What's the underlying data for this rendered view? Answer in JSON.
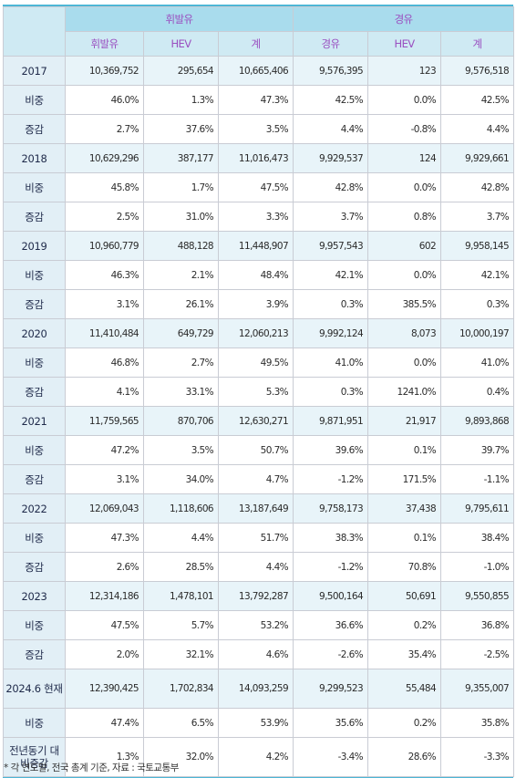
{
  "header": {
    "groups": [
      "휘발유",
      "경유"
    ],
    "columns": [
      "휘발유",
      "HEV",
      "계",
      "경유",
      "HEV",
      "계"
    ]
  },
  "rows": [
    {
      "label": "2017",
      "type": "year",
      "values": [
        "10,369,752",
        "295,654",
        "10,665,406",
        "9,576,395",
        "123",
        "9,576,518"
      ]
    },
    {
      "label": "비중",
      "type": "share",
      "values": [
        "46.0%",
        "1.3%",
        "47.3%",
        "42.5%",
        "0.0%",
        "42.5%"
      ]
    },
    {
      "label": "증감",
      "type": "change",
      "values": [
        "2.7%",
        "37.6%",
        "3.5%",
        "4.4%",
        "-0.8%",
        "4.4%"
      ]
    },
    {
      "label": "2018",
      "type": "year",
      "values": [
        "10,629,296",
        "387,177",
        "11,016,473",
        "9,929,537",
        "124",
        "9,929,661"
      ]
    },
    {
      "label": "비중",
      "type": "share",
      "values": [
        "45.8%",
        "1.7%",
        "47.5%",
        "42.8%",
        "0.0%",
        "42.8%"
      ]
    },
    {
      "label": "증감",
      "type": "change",
      "values": [
        "2.5%",
        "31.0%",
        "3.3%",
        "3.7%",
        "0.8%",
        "3.7%"
      ]
    },
    {
      "label": "2019",
      "type": "year",
      "values": [
        "10,960,779",
        "488,128",
        "11,448,907",
        "9,957,543",
        "602",
        "9,958,145"
      ]
    },
    {
      "label": "비중",
      "type": "share",
      "values": [
        "46.3%",
        "2.1%",
        "48.4%",
        "42.1%",
        "0.0%",
        "42.1%"
      ]
    },
    {
      "label": "증감",
      "type": "change",
      "values": [
        "3.1%",
        "26.1%",
        "3.9%",
        "0.3%",
        "385.5%",
        "0.3%"
      ]
    },
    {
      "label": "2020",
      "type": "year",
      "values": [
        "11,410,484",
        "649,729",
        "12,060,213",
        "9,992,124",
        "8,073",
        "10,000,197"
      ]
    },
    {
      "label": "비중",
      "type": "share",
      "values": [
        "46.8%",
        "2.7%",
        "49.5%",
        "41.0%",
        "0.0%",
        "41.0%"
      ]
    },
    {
      "label": "증감",
      "type": "change",
      "values": [
        "4.1%",
        "33.1%",
        "5.3%",
        "0.3%",
        "1241.0%",
        "0.4%"
      ]
    },
    {
      "label": "2021",
      "type": "year",
      "values": [
        "11,759,565",
        "870,706",
        "12,630,271",
        "9,871,951",
        "21,917",
        "9,893,868"
      ]
    },
    {
      "label": "비중",
      "type": "share",
      "values": [
        "47.2%",
        "3.5%",
        "50.7%",
        "39.6%",
        "0.1%",
        "39.7%"
      ]
    },
    {
      "label": "증감",
      "type": "change",
      "values": [
        "3.1%",
        "34.0%",
        "4.7%",
        "-1.2%",
        "171.5%",
        "-1.1%"
      ]
    },
    {
      "label": "2022",
      "type": "year",
      "values": [
        "12,069,043",
        "1,118,606",
        "13,187,649",
        "9,758,173",
        "37,438",
        "9,795,611"
      ]
    },
    {
      "label": "비중",
      "type": "share",
      "values": [
        "47.3%",
        "4.4%",
        "51.7%",
        "38.3%",
        "0.1%",
        "38.4%"
      ]
    },
    {
      "label": "증감",
      "type": "change",
      "values": [
        "2.6%",
        "28.5%",
        "4.4%",
        "-1.2%",
        "70.8%",
        "-1.0%"
      ]
    },
    {
      "label": "2023",
      "type": "year",
      "values": [
        "12,314,186",
        "1,478,101",
        "13,792,287",
        "9,500,164",
        "50,691",
        "9,550,855"
      ]
    },
    {
      "label": "비중",
      "type": "share",
      "values": [
        "47.5%",
        "5.7%",
        "53.2%",
        "36.6%",
        "0.2%",
        "36.8%"
      ]
    },
    {
      "label": "증감",
      "type": "change",
      "values": [
        "2.0%",
        "32.1%",
        "4.6%",
        "-2.6%",
        "35.4%",
        "-2.5%"
      ]
    },
    {
      "label": "2024.6 현재",
      "type": "year-tall",
      "values": [
        "12,390,425",
        "1,702,834",
        "14,093,259",
        "9,299,523",
        "55,484",
        "9,355,007"
      ]
    },
    {
      "label": "비중",
      "type": "share",
      "values": [
        "47.4%",
        "6.5%",
        "53.9%",
        "35.6%",
        "0.2%",
        "35.8%"
      ]
    },
    {
      "label": "전년동기 대비증감",
      "type": "change-tall",
      "values": [
        "1.3%",
        "32.0%",
        "4.2%",
        "-3.4%",
        "28.6%",
        "-3.3%"
      ]
    }
  ],
  "footnote": "* 각 연도말, 전국 총계 기준, 자료 : 국토교통부"
}
